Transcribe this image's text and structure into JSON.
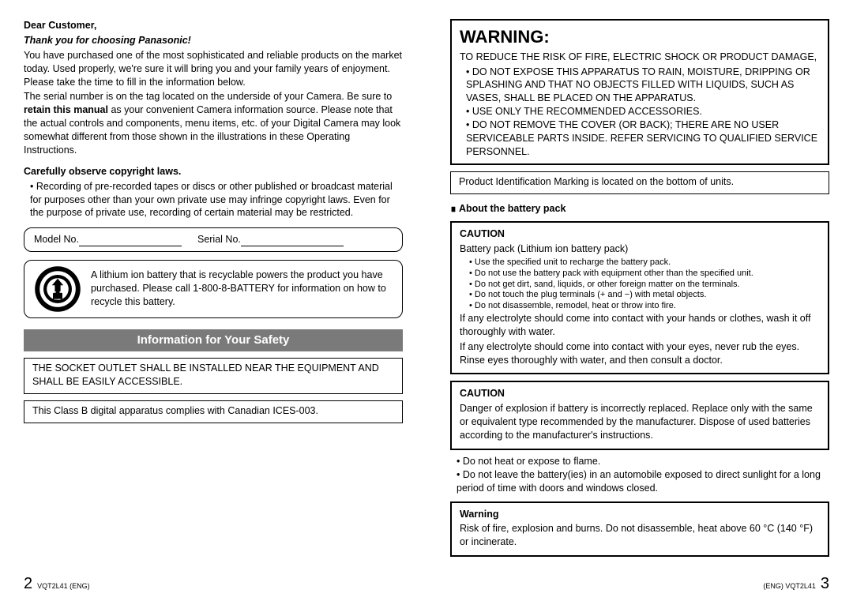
{
  "left": {
    "greeting": "Dear Customer,",
    "thanks": "Thank you for choosing Panasonic!",
    "intro1": "You have purchased one of the most sophisticated and reliable products on the market today. Used properly, we're sure it will bring you and your family years of enjoyment. Please take the time to fill in the information below.",
    "intro2": "The serial number is on the tag located on the underside of your Camera. Be sure to ",
    "intro2_bold": "retain this manual",
    "intro2_after": " as your convenient Camera information source. Please note that the actual controls and components, menu items, etc. of your Digital Camera may look somewhat different from those shown in the illustrations in these Operating Instructions.",
    "copyright_heading": "Carefully observe copyright laws.",
    "copyright_bullet": "Recording of pre-recorded tapes or discs or other published or broadcast material for purposes other than your own private use may infringe copyright laws. Even for the purpose of private use, recording of certain material may be restricted.",
    "model_label": "Model No.",
    "serial_label": "Serial No.",
    "recycle_text": "A lithium ion battery that is recyclable powers the product you have purchased. Please call 1-800-8-BATTERY for information on how to recycle this battery.",
    "safety_bar": "Information for Your Safety",
    "socket_box": "THE SOCKET OUTLET SHALL BE INSTALLED NEAR THE EQUIPMENT AND SHALL BE EASILY ACCESSIBLE.",
    "ices_box": "This Class B digital apparatus complies with Canadian ICES-003.",
    "page_num": "2",
    "doc_id": "VQT2L41 (ENG)"
  },
  "right": {
    "warning_title": "WARNING:",
    "warning_intro": "TO REDUCE THE RISK OF FIRE, ELECTRIC SHOCK OR PRODUCT DAMAGE,",
    "warning_bullets": [
      "DO NOT EXPOSE THIS APPARATUS TO RAIN, MOISTURE, DRIPPING OR SPLASHING AND THAT NO OBJECTS FILLED WITH LIQUIDS, SUCH AS VASES, SHALL BE PLACED ON THE APPARATUS.",
      "USE ONLY THE RECOMMENDED ACCESSORIES.",
      "DO NOT REMOVE THE COVER (OR BACK); THERE ARE NO USER SERVICEABLE PARTS INSIDE. REFER SERVICING TO QUALIFIED SERVICE PERSONNEL."
    ],
    "pid_box": "Product Identification Marking is located on the bottom of units.",
    "battery_heading": "About the battery pack",
    "caution1": "CAUTION",
    "battery_pack_line": "Battery pack (Lithium ion battery pack)",
    "battery_small_bullets": [
      "Use the specified unit to recharge the battery pack.",
      "Do not use the battery pack with equipment other than the specified unit.",
      "Do not get dirt, sand, liquids, or other foreign matter on the terminals.",
      "Do not touch the plug terminals (+ and −) with metal objects.",
      "Do not disassemble, remodel, heat or throw into fire."
    ],
    "electrolyte1": "If any electrolyte should come into contact with your hands or clothes, wash it off thoroughly with water.",
    "electrolyte2": "If any electrolyte should come into contact with your eyes, never rub the eyes. Rinse eyes thoroughly with water, and then consult a doctor.",
    "caution2": "CAUTION",
    "caution2_text": "Danger of explosion if battery is incorrectly replaced. Replace only with the same or equivalent type recommended by the manufacturer. Dispose of used batteries according to the manufacturer's instructions.",
    "after_bullets": [
      "Do not heat or expose to flame.",
      "Do not leave the battery(ies) in an automobile exposed to direct sunlight for a long period of time with doors and windows closed."
    ],
    "warning2_heading": "Warning",
    "warning2_text": "Risk of fire, explosion and burns. Do not disassemble, heat above 60 °C (140 °F) or incinerate.",
    "doc_id": "(ENG) VQT2L41",
    "page_num": "3"
  }
}
